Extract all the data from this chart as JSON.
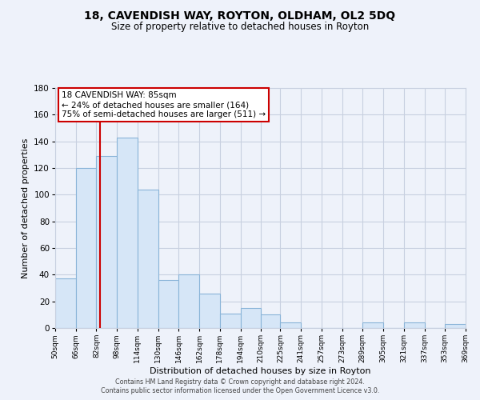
{
  "title": "18, CAVENDISH WAY, ROYTON, OLDHAM, OL2 5DQ",
  "subtitle": "Size of property relative to detached houses in Royton",
  "xlabel": "Distribution of detached houses by size in Royton",
  "ylabel": "Number of detached properties",
  "bin_edges": [
    50,
    66,
    82,
    98,
    114,
    130,
    146,
    162,
    178,
    194,
    210,
    225,
    241,
    257,
    273,
    289,
    305,
    321,
    337,
    353,
    369
  ],
  "bar_heights": [
    37,
    120,
    129,
    143,
    104,
    36,
    40,
    26,
    11,
    15,
    10,
    4,
    0,
    0,
    0,
    4,
    0,
    4,
    0,
    3
  ],
  "bar_color": "#d6e6f7",
  "bar_edge_color": "#8ab4d8",
  "property_size": 85,
  "vline_color": "#cc0000",
  "annotation_title": "18 CAVENDISH WAY: 85sqm",
  "annotation_line1": "← 24% of detached houses are smaller (164)",
  "annotation_line2": "75% of semi-detached houses are larger (511) →",
  "tick_labels": [
    "50sqm",
    "66sqm",
    "82sqm",
    "98sqm",
    "114sqm",
    "130sqm",
    "146sqm",
    "162sqm",
    "178sqm",
    "194sqm",
    "210sqm",
    "225sqm",
    "241sqm",
    "257sqm",
    "273sqm",
    "289sqm",
    "305sqm",
    "321sqm",
    "337sqm",
    "353sqm",
    "369sqm"
  ],
  "ylim": [
    0,
    180
  ],
  "yticks": [
    0,
    20,
    40,
    60,
    80,
    100,
    120,
    140,
    160,
    180
  ],
  "footer1": "Contains HM Land Registry data © Crown copyright and database right 2024.",
  "footer2": "Contains public sector information licensed under the Open Government Licence v3.0.",
  "bg_color": "#eef2fa",
  "plot_bg_color": "#eef2fa",
  "grid_color": "#c8d0e0"
}
